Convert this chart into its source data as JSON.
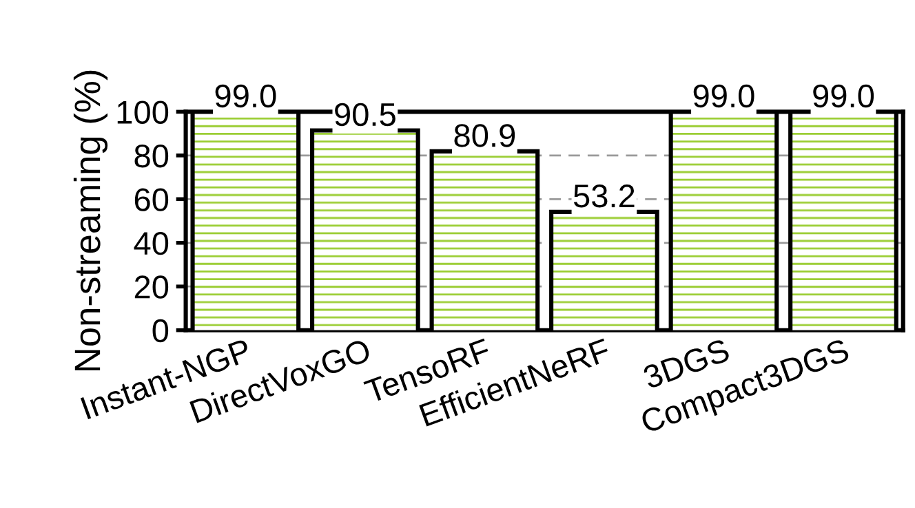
{
  "chart_data": {
    "type": "bar",
    "ylabel": "Non-streaming (%)",
    "categories": [
      "Instant-NGP",
      "DirectVoxGO",
      "TensoRF",
      "EfficientNeRF",
      "3DGS",
      "Compact3DGS"
    ],
    "values": [
      99.0,
      90.5,
      80.9,
      53.2,
      99.0,
      99.0
    ],
    "color": "#9acd32",
    "ylim": [
      0,
      100
    ],
    "yticks": [
      0,
      20,
      40,
      60,
      80,
      100
    ],
    "value_labels": [
      "99.0",
      "90.5",
      "80.9",
      "53.2",
      "99.0",
      "99.0"
    ],
    "grid": "y"
  }
}
